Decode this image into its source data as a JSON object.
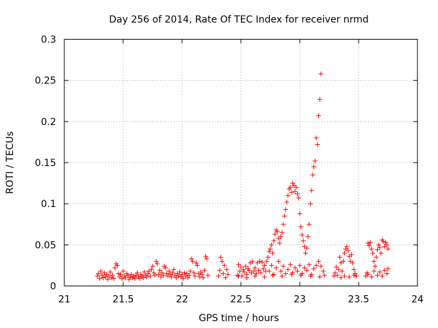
{
  "chart_data": {
    "type": "scatter",
    "title": "Day 256 of 2014, Rate Of TEC Index for receiver nrmd",
    "xlabel": "GPS time / hours",
    "ylabel": "ROTI / TECUs",
    "xlim": [
      21,
      24
    ],
    "ylim": [
      0,
      0.3
    ],
    "xticks": [
      "21",
      "21.5",
      "22",
      "22.5",
      "23",
      "23.5",
      "24"
    ],
    "yticks": [
      "0",
      "0.05",
      "0.1",
      "0.15",
      "0.2",
      "0.25",
      "0.3"
    ],
    "grid": true,
    "marker": "+",
    "color": "#ff0000",
    "series": [
      {
        "name": "ROTI",
        "points": [
          [
            21.28,
            0.012
          ],
          [
            21.29,
            0.015
          ],
          [
            21.3,
            0.009
          ],
          [
            21.31,
            0.018
          ],
          [
            21.32,
            0.013
          ],
          [
            21.33,
            0.01
          ],
          [
            21.34,
            0.016
          ],
          [
            21.35,
            0.011
          ],
          [
            21.36,
            0.014
          ],
          [
            21.37,
            0.008
          ],
          [
            21.38,
            0.012
          ],
          [
            21.39,
            0.017
          ],
          [
            21.4,
            0.01
          ],
          [
            21.41,
            0.013
          ],
          [
            21.42,
            0.009
          ],
          [
            21.43,
            0.022
          ],
          [
            21.44,
            0.027
          ],
          [
            21.45,
            0.025
          ],
          [
            21.46,
            0.015
          ],
          [
            21.47,
            0.011
          ],
          [
            21.48,
            0.014
          ],
          [
            21.49,
            0.009
          ],
          [
            21.5,
            0.018
          ],
          [
            21.51,
            0.012
          ],
          [
            21.52,
            0.01
          ],
          [
            21.53,
            0.015
          ],
          [
            21.54,
            0.013
          ],
          [
            21.55,
            0.008
          ],
          [
            21.56,
            0.011
          ],
          [
            21.57,
            0.014
          ],
          [
            21.58,
            0.01
          ],
          [
            21.59,
            0.012
          ],
          [
            21.6,
            0.009
          ],
          [
            21.61,
            0.013
          ],
          [
            21.62,
            0.016
          ],
          [
            21.63,
            0.011
          ],
          [
            21.64,
            0.009
          ],
          [
            21.65,
            0.014
          ],
          [
            21.66,
            0.012
          ],
          [
            21.67,
            0.01
          ],
          [
            21.68,
            0.017
          ],
          [
            21.69,
            0.013
          ],
          [
            21.7,
            0.011
          ],
          [
            21.71,
            0.015
          ],
          [
            21.72,
            0.018
          ],
          [
            21.73,
            0.012
          ],
          [
            21.74,
            0.02
          ],
          [
            21.75,
            0.024
          ],
          [
            21.76,
            0.016
          ],
          [
            21.77,
            0.013
          ],
          [
            21.78,
            0.03
          ],
          [
            21.79,
            0.027
          ],
          [
            21.8,
            0.014
          ],
          [
            21.81,
            0.019
          ],
          [
            21.82,
            0.011
          ],
          [
            21.83,
            0.016
          ],
          [
            21.84,
            0.013
          ],
          [
            21.85,
            0.024
          ],
          [
            21.86,
            0.022
          ],
          [
            21.87,
            0.015
          ],
          [
            21.88,
            0.012
          ],
          [
            21.89,
            0.018
          ],
          [
            21.9,
            0.014
          ],
          [
            21.91,
            0.011
          ],
          [
            21.92,
            0.016
          ],
          [
            21.93,
            0.02
          ],
          [
            21.94,
            0.013
          ],
          [
            21.95,
            0.01
          ],
          [
            21.96,
            0.015
          ],
          [
            21.97,
            0.012
          ],
          [
            21.98,
            0.017
          ],
          [
            21.99,
            0.011
          ],
          [
            22.0,
            0.014
          ],
          [
            22.01,
            0.009
          ],
          [
            22.02,
            0.016
          ],
          [
            22.03,
            0.012
          ],
          [
            22.04,
            0.015
          ],
          [
            22.05,
            0.01
          ],
          [
            22.06,
            0.013
          ],
          [
            22.07,
            0.018
          ],
          [
            22.08,
            0.033
          ],
          [
            22.09,
            0.03
          ],
          [
            22.1,
            0.016
          ],
          [
            22.11,
            0.012
          ],
          [
            22.12,
            0.028
          ],
          [
            22.13,
            0.025
          ],
          [
            22.14,
            0.015
          ],
          [
            22.15,
            0.011
          ],
          [
            22.16,
            0.017
          ],
          [
            22.17,
            0.014
          ],
          [
            22.18,
            0.01
          ],
          [
            22.19,
            0.019
          ],
          [
            22.2,
            0.036
          ],
          [
            22.21,
            0.033
          ],
          [
            22.22,
            0.013
          ],
          [
            22.31,
            0.012
          ],
          [
            22.32,
            0.019
          ],
          [
            22.33,
            0.035
          ],
          [
            22.34,
            0.03
          ],
          [
            22.35,
            0.015
          ],
          [
            22.36,
            0.025
          ],
          [
            22.37,
            0.01
          ],
          [
            22.38,
            0.02
          ],
          [
            22.39,
            0.014
          ],
          [
            22.47,
            0.013
          ],
          [
            22.48,
            0.026
          ],
          [
            22.49,
            0.018
          ],
          [
            22.5,
            0.023
          ],
          [
            22.51,
            0.012
          ],
          [
            22.52,
            0.02
          ],
          [
            22.53,
            0.017
          ],
          [
            22.54,
            0.024
          ],
          [
            22.55,
            0.014
          ],
          [
            22.56,
            0.021
          ],
          [
            22.57,
            0.019
          ],
          [
            22.58,
            0.028
          ],
          [
            22.59,
            0.016
          ],
          [
            22.6,
            0.03
          ],
          [
            22.61,
            0.018
          ],
          [
            22.62,
            0.022
          ],
          [
            22.63,
            0.015
          ],
          [
            22.64,
            0.028
          ],
          [
            22.65,
            0.019
          ],
          [
            22.66,
            0.03
          ],
          [
            22.67,
            0.016
          ],
          [
            22.68,
            0.029
          ],
          [
            22.69,
            0.021
          ],
          [
            22.7,
            0.025
          ],
          [
            22.71,
            0.018
          ],
          [
            22.72,
            0.03
          ],
          [
            22.73,
            0.035
          ],
          [
            22.74,
            0.042
          ],
          [
            22.75,
            0.045
          ],
          [
            22.76,
            0.05
          ],
          [
            22.77,
            0.04
          ],
          [
            22.78,
            0.055
          ],
          [
            22.79,
            0.063
          ],
          [
            22.8,
            0.068
          ],
          [
            22.81,
            0.066
          ],
          [
            22.82,
            0.058
          ],
          [
            22.83,
            0.052
          ],
          [
            22.84,
            0.06
          ],
          [
            22.85,
            0.065
          ],
          [
            22.86,
            0.075
          ],
          [
            22.87,
            0.085
          ],
          [
            22.88,
            0.093
          ],
          [
            22.89,
            0.102
          ],
          [
            22.9,
            0.11
          ],
          [
            22.91,
            0.118
          ],
          [
            22.92,
            0.12
          ],
          [
            22.93,
            0.114
          ],
          [
            22.94,
            0.125
          ],
          [
            22.95,
            0.122
          ],
          [
            22.96,
            0.115
          ],
          [
            22.97,
            0.12
          ],
          [
            22.98,
            0.112
          ],
          [
            22.99,
            0.107
          ],
          [
            23.0,
            0.088
          ],
          [
            23.01,
            0.072
          ],
          [
            23.02,
            0.062
          ],
          [
            23.03,
            0.055
          ],
          [
            23.04,
            0.048
          ],
          [
            23.05,
            0.04
          ],
          [
            23.06,
            0.046
          ],
          [
            23.07,
            0.06
          ],
          [
            23.08,
            0.075
          ],
          [
            23.09,
            0.1
          ],
          [
            23.1,
            0.116
          ],
          [
            23.11,
            0.135
          ],
          [
            23.12,
            0.145
          ],
          [
            23.13,
            0.152
          ],
          [
            23.14,
            0.18
          ],
          [
            23.15,
            0.172
          ],
          [
            23.16,
            0.207
          ],
          [
            23.17,
            0.227
          ],
          [
            23.18,
            0.258
          ],
          [
            22.74,
            0.018
          ],
          [
            22.76,
            0.025
          ],
          [
            22.78,
            0.014
          ],
          [
            22.8,
            0.022
          ],
          [
            22.82,
            0.03
          ],
          [
            22.84,
            0.018
          ],
          [
            22.86,
            0.024
          ],
          [
            22.88,
            0.015
          ],
          [
            22.9,
            0.02
          ],
          [
            22.92,
            0.026
          ],
          [
            22.94,
            0.016
          ],
          [
            22.96,
            0.022
          ],
          [
            22.98,
            0.018
          ],
          [
            23.0,
            0.025
          ],
          [
            23.02,
            0.015
          ],
          [
            23.04,
            0.022
          ],
          [
            23.06,
            0.019
          ],
          [
            23.08,
            0.026
          ],
          [
            23.1,
            0.014
          ],
          [
            23.12,
            0.021
          ],
          [
            23.14,
            0.025
          ],
          [
            23.16,
            0.03
          ],
          [
            23.18,
            0.024
          ],
          [
            23.2,
            0.018
          ],
          [
            23.21,
            0.013
          ],
          [
            22.48,
            0.012
          ],
          [
            22.55,
            0.01
          ],
          [
            22.62,
            0.012
          ],
          [
            22.7,
            0.011
          ],
          [
            22.77,
            0.013
          ],
          [
            22.85,
            0.012
          ],
          [
            22.93,
            0.014
          ],
          [
            23.01,
            0.013
          ],
          [
            23.09,
            0.012
          ],
          [
            23.17,
            0.011
          ],
          [
            23.29,
            0.012
          ],
          [
            23.3,
            0.016
          ],
          [
            23.31,
            0.023
          ],
          [
            23.32,
            0.013
          ],
          [
            23.33,
            0.02
          ],
          [
            23.34,
            0.035
          ],
          [
            23.35,
            0.028
          ],
          [
            23.36,
            0.018
          ],
          [
            23.37,
            0.03
          ],
          [
            23.38,
            0.04
          ],
          [
            23.39,
            0.045
          ],
          [
            23.4,
            0.048
          ],
          [
            23.41,
            0.043
          ],
          [
            23.42,
            0.036
          ],
          [
            23.43,
            0.03
          ],
          [
            23.44,
            0.038
          ],
          [
            23.45,
            0.028
          ],
          [
            23.46,
            0.02
          ],
          [
            23.47,
            0.015
          ],
          [
            23.48,
            0.012
          ],
          [
            23.35,
            0.01
          ],
          [
            23.38,
            0.012
          ],
          [
            23.42,
            0.011
          ],
          [
            23.46,
            0.013
          ],
          [
            23.56,
            0.012
          ],
          [
            23.57,
            0.016
          ],
          [
            23.58,
            0.052
          ],
          [
            23.59,
            0.049
          ],
          [
            23.6,
            0.053
          ],
          [
            23.61,
            0.045
          ],
          [
            23.62,
            0.04
          ],
          [
            23.63,
            0.03
          ],
          [
            23.64,
            0.024
          ],
          [
            23.65,
            0.035
          ],
          [
            23.66,
            0.044
          ],
          [
            23.67,
            0.05
          ],
          [
            23.68,
            0.047
          ],
          [
            23.69,
            0.04
          ],
          [
            23.7,
            0.056
          ],
          [
            23.71,
            0.054
          ],
          [
            23.72,
            0.048
          ],
          [
            23.73,
            0.053
          ],
          [
            23.74,
            0.05
          ],
          [
            23.75,
            0.045
          ],
          [
            23.58,
            0.014
          ],
          [
            23.61,
            0.011
          ],
          [
            23.63,
            0.018
          ],
          [
            23.66,
            0.013
          ],
          [
            23.68,
            0.017
          ],
          [
            23.7,
            0.012
          ],
          [
            23.72,
            0.019
          ],
          [
            23.74,
            0.015
          ],
          [
            23.75,
            0.021
          ]
        ]
      }
    ]
  }
}
